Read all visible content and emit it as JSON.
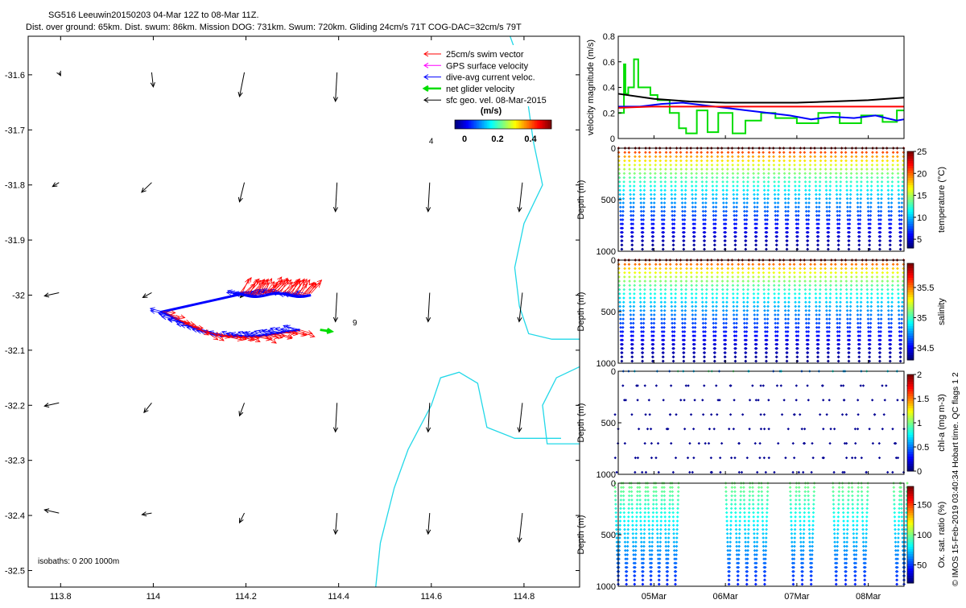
{
  "header": {
    "line1": "SG516 Leeuwin20150203 04-Mar 12Z to 08-Mar 11Z.",
    "line2": "Dist. over ground: 65km. Dist. swum: 86km. Mission DOG: 731km. Swum: 720km. Gliding 24cm/s 71T COG-DAC=32cm/s 79T"
  },
  "map": {
    "xticks": [
      "113.8",
      "114",
      "114.2",
      "114.4",
      "114.6",
      "114.8"
    ],
    "yticks": [
      "-31.6",
      "-31.7",
      "-31.8",
      "-31.9",
      "-32",
      "-32.1",
      "-32.2",
      "-32.3",
      "-32.4",
      "-32.5"
    ],
    "xlim": [
      113.73,
      114.92
    ],
    "ylim": [
      -32.53,
      -31.53
    ],
    "isobaths_label": "isobaths: 0   200   1000m",
    "labels": [
      {
        "text": "9",
        "lon": 114.43,
        "lat": -32.055
      },
      {
        "text": "4",
        "lon": 114.595,
        "lat": -31.725
      }
    ],
    "legend": {
      "items": [
        {
          "label": "25cm/s swim vector",
          "color": "#ff0000"
        },
        {
          "label": "GPS surface velocity",
          "color": "#ff00ff"
        },
        {
          "label": "dive-avg current veloc.",
          "color": "#0000ff"
        },
        {
          "label": "net glider velocity",
          "color": "#00dd00"
        },
        {
          "label": "sfc geo. vel. 08-Mar-2015",
          "color": "#000000"
        }
      ],
      "colorbar_title": "(m/s)",
      "colorbar_ticks": [
        "0",
        "0.2",
        "0.4"
      ]
    }
  },
  "chart_data": [
    {
      "type": "line",
      "title": "velocity magnitude",
      "ylabel": "velocity magnitude (m/s)",
      "ylim": [
        0,
        0.8
      ],
      "yticks": [
        "0",
        "0.2",
        "0.4",
        "0.6",
        "0.8"
      ],
      "xlim": [
        0,
        4.0
      ],
      "series": [
        {
          "name": "net glider velocity",
          "color": "#00dd00",
          "x": [
            0,
            0.08,
            0.08,
            0.1,
            0.1,
            0.14,
            0.14,
            0.22,
            0.22,
            0.28,
            0.28,
            0.45,
            0.45,
            0.55,
            0.55,
            0.72,
            0.72,
            0.85,
            0.85,
            0.95,
            0.95,
            1.1,
            1.1,
            1.25,
            1.25,
            1.4,
            1.4,
            1.6,
            1.6,
            1.78,
            1.78,
            2.0,
            2.0,
            2.2,
            2.2,
            2.5,
            2.5,
            2.8,
            2.8,
            3.1,
            3.1,
            3.4,
            3.4,
            3.7,
            3.7,
            3.9,
            3.9,
            4.0
          ],
          "y": [
            0.2,
            0.2,
            0.58,
            0.58,
            0.35,
            0.35,
            0.4,
            0.4,
            0.62,
            0.62,
            0.4,
            0.4,
            0.34,
            0.34,
            0.3,
            0.3,
            0.2,
            0.2,
            0.08,
            0.08,
            0.04,
            0.04,
            0.22,
            0.22,
            0.05,
            0.05,
            0.2,
            0.2,
            0.04,
            0.04,
            0.14,
            0.14,
            0.2,
            0.2,
            0.16,
            0.16,
            0.12,
            0.12,
            0.2,
            0.2,
            0.12,
            0.12,
            0.18,
            0.18,
            0.13,
            0.13,
            0.22,
            0.22
          ]
        },
        {
          "name": "dive-avg current veloc.",
          "color": "#0000ff",
          "x": [
            0,
            0.3,
            0.6,
            0.9,
            1.2,
            1.5,
            1.8,
            2.1,
            2.4,
            2.7,
            3.0,
            3.3,
            3.6,
            3.9,
            4.0
          ],
          "y": [
            0.25,
            0.25,
            0.27,
            0.28,
            0.26,
            0.24,
            0.22,
            0.2,
            0.18,
            0.15,
            0.17,
            0.16,
            0.18,
            0.14,
            0.15
          ]
        },
        {
          "name": "25cm/s swim",
          "color": "#ff0000",
          "x": [
            0,
            0.5,
            1.0,
            1.5,
            2.0,
            2.5,
            3.0,
            3.5,
            4.0
          ],
          "y": [
            0.24,
            0.25,
            0.25,
            0.25,
            0.25,
            0.25,
            0.25,
            0.25,
            0.25
          ]
        },
        {
          "name": "sfc geo. vel.",
          "color": "#000000",
          "x": [
            0,
            0.5,
            1.0,
            1.5,
            2.0,
            2.5,
            3.0,
            3.5,
            4.0
          ],
          "y": [
            0.35,
            0.31,
            0.29,
            0.28,
            0.28,
            0.28,
            0.29,
            0.3,
            0.32
          ]
        }
      ]
    },
    {
      "type": "scatter",
      "title": "temperature",
      "ylabel": "Depth (m)",
      "ylim": [
        1000,
        0
      ],
      "yticks": [
        "0",
        "500",
        "1000"
      ],
      "cb_label": "temperature (°C)",
      "cb_ticks": [
        "25",
        "20",
        "15",
        "10",
        "5"
      ],
      "cb_range": [
        3,
        25
      ],
      "profiles": 28,
      "full": true
    },
    {
      "type": "scatter",
      "title": "salinity",
      "ylabel": "Depth (m)",
      "ylim": [
        1000,
        0
      ],
      "yticks": [
        "0",
        "500",
        "1000"
      ],
      "cb_label": "salinity",
      "cb_ticks": [
        "35.5",
        "35",
        "34.5"
      ],
      "cb_range": [
        34.3,
        35.9
      ],
      "profiles": 28,
      "full": true
    },
    {
      "type": "scatter",
      "title": "chl-a",
      "ylabel": "Depth (m)",
      "ylim": [
        1000,
        0
      ],
      "yticks": [
        "0",
        "500",
        "1000"
      ],
      "cb_label": "chl-a (mg m-3)",
      "cb_ticks": [
        "2",
        "1.5",
        "1",
        "0.5",
        "0"
      ],
      "cb_range": [
        0,
        2
      ],
      "profiles": 28,
      "sparse": true
    },
    {
      "type": "scatter",
      "title": "oxygen",
      "ylabel": "Depth (m)",
      "ylim": [
        1000,
        0
      ],
      "yticks": [
        "0",
        "500",
        "1000"
      ],
      "cb_label": "Ox. sat. ratio (%)",
      "cb_ticks": [
        "150",
        "100",
        "50"
      ],
      "cb_range": [
        20,
        180
      ],
      "profiles": 16,
      "groups": [
        [
          0.0,
          0.8
        ],
        [
          1.55,
          2.05
        ],
        [
          2.45,
          2.7
        ],
        [
          3.05,
          3.45
        ],
        [
          3.9,
          4.0
        ]
      ]
    }
  ],
  "time_axis": {
    "ticks": [
      "05Mar",
      "06Mar",
      "07Mar",
      "08Mar"
    ],
    "tick_days": [
      0.5,
      1.5,
      2.5,
      3.5
    ]
  },
  "side_text": "© IMOS 15-Feb-2019 03:40:34 Hobart time. QC flags 1  2"
}
